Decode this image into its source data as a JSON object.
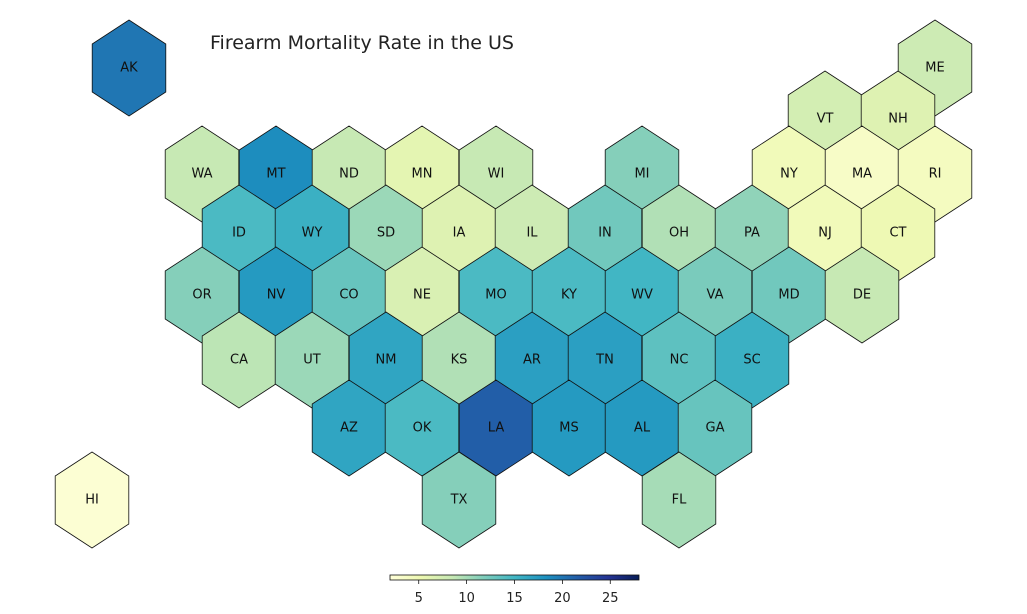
{
  "title": "Firearm Mortality Rate in the US",
  "colorscale": {
    "name": "YlGnBu",
    "min": 2,
    "max": 28,
    "ticks": [
      5,
      10,
      15,
      20,
      25
    ],
    "stops": [
      "#ffffd9",
      "#edf8b1",
      "#c7e9b4",
      "#7fcdbb",
      "#41b6c4",
      "#1d91c0",
      "#225ea8",
      "#253494",
      "#081d58"
    ]
  },
  "states": [
    {
      "abbr": "AK",
      "rate": 20.0
    },
    {
      "abbr": "ME",
      "rate": 8.0
    },
    {
      "abbr": "VT",
      "rate": 7.5
    },
    {
      "abbr": "NH",
      "rate": 6.5
    },
    {
      "abbr": "WA",
      "rate": 8.5
    },
    {
      "abbr": "MT",
      "rate": 18.5
    },
    {
      "abbr": "ND",
      "rate": 8.5
    },
    {
      "abbr": "MN",
      "rate": 6.0
    },
    {
      "abbr": "WI",
      "rate": 8.5
    },
    {
      "abbr": "MI",
      "rate": 11.5
    },
    {
      "abbr": "NY",
      "rate": 4.5
    },
    {
      "abbr": "MA",
      "rate": 3.5
    },
    {
      "abbr": "RI",
      "rate": 4.0
    },
    {
      "abbr": "ID",
      "rate": 14.5
    },
    {
      "abbr": "WY",
      "rate": 15.5
    },
    {
      "abbr": "SD",
      "rate": 10.5
    },
    {
      "abbr": "IA",
      "rate": 6.5
    },
    {
      "abbr": "IL",
      "rate": 8.0
    },
    {
      "abbr": "IN",
      "rate": 12.5
    },
    {
      "abbr": "OH",
      "rate": 9.5
    },
    {
      "abbr": "PA",
      "rate": 11.0
    },
    {
      "abbr": "NJ",
      "rate": 4.5
    },
    {
      "abbr": "CT",
      "rate": 5.0
    },
    {
      "abbr": "OR",
      "rate": 11.5
    },
    {
      "abbr": "NV",
      "rate": 17.5
    },
    {
      "abbr": "CO",
      "rate": 13.0
    },
    {
      "abbr": "NE",
      "rate": 7.0
    },
    {
      "abbr": "MO",
      "rate": 14.5
    },
    {
      "abbr": "KY",
      "rate": 14.5
    },
    {
      "abbr": "WV",
      "rate": 15.0
    },
    {
      "abbr": "VA",
      "rate": 12.0
    },
    {
      "abbr": "MD",
      "rate": 12.5
    },
    {
      "abbr": "DE",
      "rate": 8.5
    },
    {
      "abbr": "CA",
      "rate": 9.0
    },
    {
      "abbr": "UT",
      "rate": 10.5
    },
    {
      "abbr": "NM",
      "rate": 16.5
    },
    {
      "abbr": "KS",
      "rate": 9.5
    },
    {
      "abbr": "AR",
      "rate": 17.0
    },
    {
      "abbr": "TN",
      "rate": 17.0
    },
    {
      "abbr": "NC",
      "rate": 13.5
    },
    {
      "abbr": "SC",
      "rate": 15.5
    },
    {
      "abbr": "AZ",
      "rate": 16.5
    },
    {
      "abbr": "OK",
      "rate": 14.5
    },
    {
      "abbr": "LA",
      "rate": 21.5
    },
    {
      "abbr": "MS",
      "rate": 17.5
    },
    {
      "abbr": "AL",
      "rate": 17.5
    },
    {
      "abbr": "GA",
      "rate": 13.0
    },
    {
      "abbr": "HI",
      "rate": 2.5
    },
    {
      "abbr": "TX",
      "rate": 11.5
    },
    {
      "abbr": "FL",
      "rate": 10.0
    }
  ]
}
